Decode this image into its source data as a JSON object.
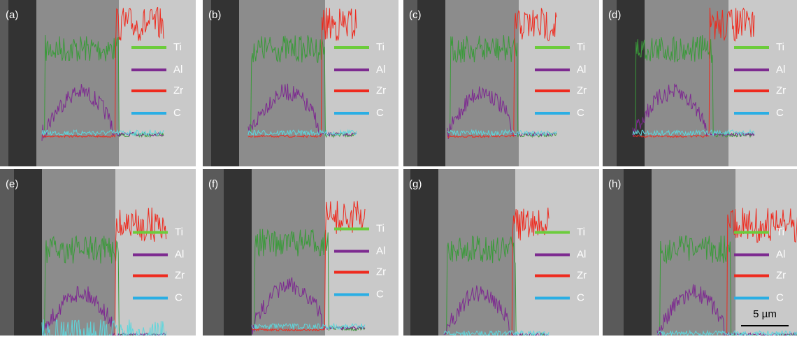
{
  "panels": [
    {
      "label": "(a)"
    },
    {
      "label": "(b)"
    },
    {
      "label": "(c)"
    },
    {
      "label": "(d)"
    },
    {
      "label": "(e)"
    },
    {
      "label": "(f)"
    },
    {
      "label": "(g)"
    },
    {
      "label": "(h)"
    }
  ],
  "legend": [
    {
      "name": "Ti",
      "color": "#6ccc3c"
    },
    {
      "name": "Al",
      "color": "#7d2a90"
    },
    {
      "name": "Zr",
      "color": "#ee2a1e"
    },
    {
      "name": "C",
      "color": "#2aaee4"
    }
  ],
  "scale_bar": {
    "label": "5 µm"
  }
}
